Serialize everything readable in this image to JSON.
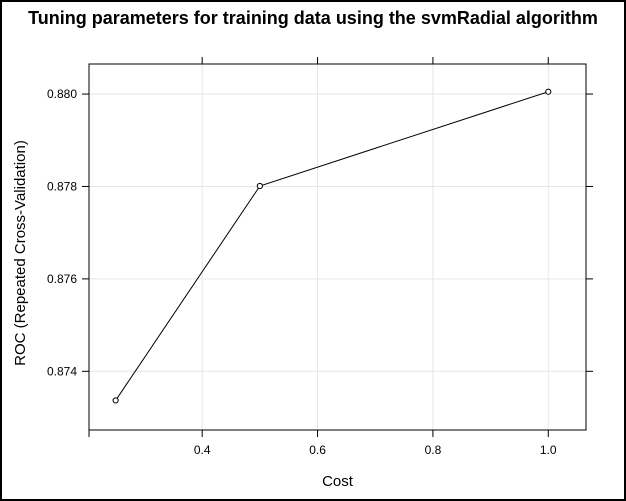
{
  "chart_data": {
    "type": "line",
    "title": "Tuning parameters for training data using the svmRadial algorithm",
    "xlabel": "Cost",
    "ylabel": "ROC (Repeated Cross-Validation)",
    "x": [
      0.25,
      0.5,
      1.0
    ],
    "series": [
      {
        "values": [
          0.87337,
          0.87801,
          0.88005
        ]
      }
    ],
    "xlim": [
      0.2038,
      1.0654
    ],
    "ylim": [
      0.87273,
      0.88065
    ],
    "xticks": [
      0.4,
      0.6,
      0.8,
      1.0
    ],
    "xtick_labels": [
      "0.4",
      "0.6",
      "0.8",
      "1.0"
    ],
    "yticks": [
      0.874,
      0.876,
      0.878,
      0.88
    ],
    "ytick_labels": [
      "0.874",
      "0.876",
      "0.878",
      "0.880"
    ],
    "grid": true,
    "colors": {
      "line": "#000000",
      "grid": "#e6e6e6",
      "frame": "#000000"
    }
  }
}
